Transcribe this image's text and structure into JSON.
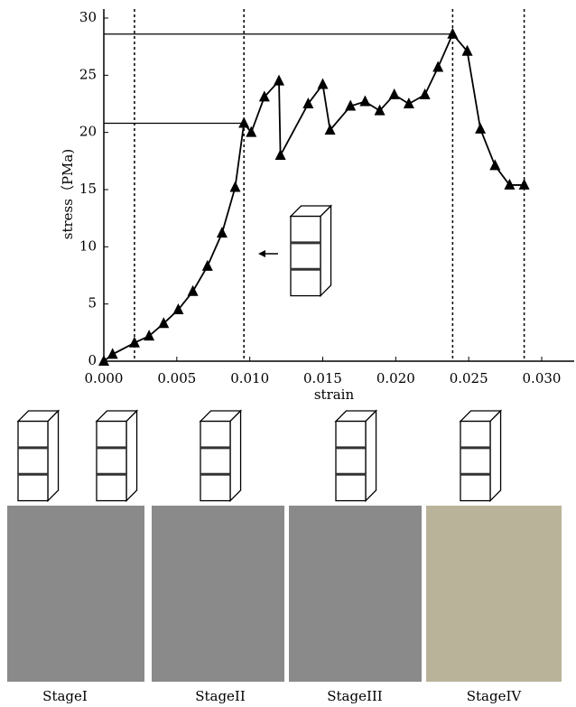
{
  "chart_data": {
    "type": "line",
    "y_label": "stress（PMa)",
    "x_label": "strain",
    "color": "#000000",
    "marker": "triangle",
    "x": [
      0,
      0.0006,
      0.0021,
      0.0031,
      0.0041,
      0.0051,
      0.0061,
      0.0071,
      0.0081,
      0.009,
      0.0096,
      0.0101,
      0.011,
      0.012,
      0.0121,
      0.014,
      0.015,
      0.0155,
      0.0169,
      0.0179,
      0.0189,
      0.0199,
      0.0209,
      0.022,
      0.0229,
      0.0239,
      0.0249,
      0.0258,
      0.0268,
      0.0278,
      0.0288
    ],
    "values": [
      0,
      0.6,
      1.6,
      2.2,
      3.3,
      4.5,
      6.1,
      8.3,
      11.2,
      15.2,
      20.8,
      20.0,
      23.1,
      24.5,
      18.0,
      22.5,
      24.2,
      20.2,
      22.3,
      22.7,
      21.9,
      23.3,
      22.5,
      23.3,
      25.7,
      28.6,
      27.1,
      20.3,
      17.1,
      15.4,
      15.4
    ],
    "xlim": [
      0,
      0.0323
    ],
    "ylim": [
      0,
      30
    ],
    "xticks": [
      {
        "value": 0,
        "label": "0.000"
      },
      {
        "value": 0.005,
        "label": "0.005"
      },
      {
        "value": 0.01,
        "label": "0.010"
      },
      {
        "value": 0.015,
        "label": "0.015"
      },
      {
        "value": 0.02,
        "label": "0.020"
      },
      {
        "value": 0.025,
        "label": "0.025"
      },
      {
        "value": 0.03,
        "label": "0.030"
      }
    ],
    "yticks": [
      0,
      5,
      10,
      15,
      20,
      25,
      30
    ],
    "vlines": [
      0.0021,
      0.0096,
      0.0239,
      0.0288
    ],
    "hlines": [
      {
        "y": 20.8,
        "x_end": 0.0096
      },
      {
        "y": 28.6,
        "x_end": 0.0239
      }
    ]
  },
  "stages": [
    "StageI",
    "StageII",
    "StageIII",
    "StageIV"
  ]
}
